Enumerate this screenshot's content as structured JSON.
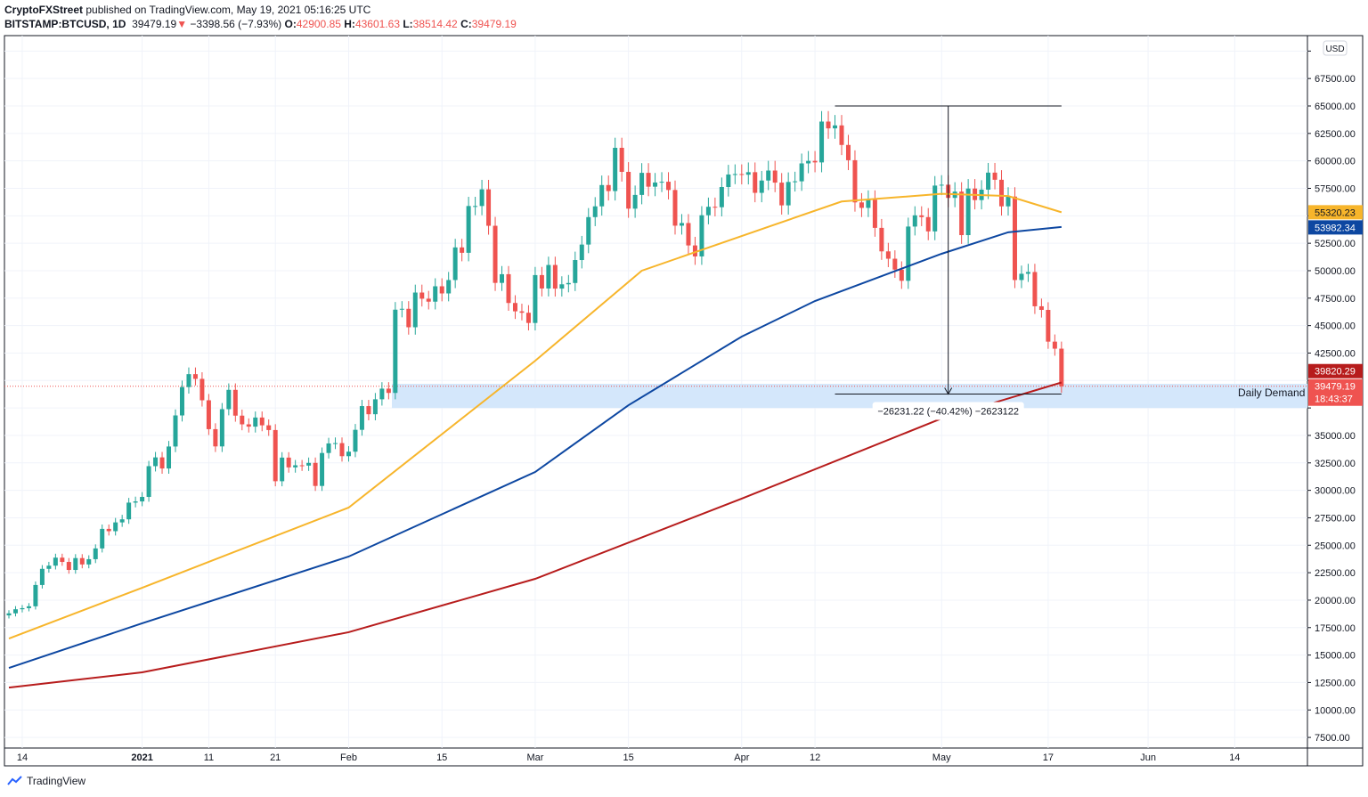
{
  "header": {
    "publisher": "CryptoFXStreet",
    "published_text": "published on TradingView.com, May 19, 2021 05:16:25 UTC",
    "symbol": "BITSTAMP:BTCUSD, 1D",
    "last": "39479.19",
    "change": "−3398.56 (−7.93%)",
    "o_label": "O:",
    "open": "42900.85",
    "h_label": "H:",
    "high": "43601.63",
    "l_label": "L:",
    "low": "38514.42",
    "c_label": "C:",
    "close": "39479.19"
  },
  "footer": {
    "brand": "TradingView"
  },
  "colors": {
    "up": "#26a69a",
    "down": "#ef5350",
    "ma50": "#f7b52b",
    "ma100": "#0d47a1",
    "ma200": "#b71c1c",
    "zone": "#d4e7fb"
  },
  "chart_data": {
    "type": "candlestick",
    "title": "BITSTAMP:BTCUSD, 1D",
    "start_date": "2020-12-12",
    "currency_label": "USD",
    "ylim": [
      6250,
      70500
    ],
    "y_tick_step": 2500,
    "closes": [
      18800,
      19170,
      19270,
      19440,
      21380,
      22850,
      23140,
      23870,
      23480,
      22750,
      23830,
      23250,
      23730,
      24710,
      26490,
      26280,
      27080,
      27360,
      28880,
      28990,
      29400,
      32200,
      33000,
      31990,
      33990,
      36820,
      39400,
      40580,
      40150,
      38200,
      35570,
      34000,
      37390,
      39150,
      36800,
      36010,
      35800,
      36630,
      35920,
      35490,
      30830,
      32980,
      32090,
      32280,
      32250,
      32500,
      30400,
      33400,
      34270,
      34300,
      33110,
      33520,
      35510,
      37670,
      36930,
      38290,
      39260,
      38870,
      46450,
      46530,
      44850,
      48010,
      47450,
      47180,
      48580,
      47930,
      49150,
      52120,
      51630,
      55890,
      55890,
      57410,
      54090,
      48890,
      49680,
      47060,
      46300,
      46170,
      45240,
      49600,
      48380,
      50520,
      48370,
      48760,
      48880,
      50970,
      52380,
      54880,
      55860,
      57800,
      57250,
      61190,
      59000,
      55650,
      56900,
      58910,
      57650,
      58030,
      58100,
      57350,
      54100,
      54340,
      52300,
      51300,
      55050,
      55820,
      55780,
      57620,
      58760,
      58800,
      58740,
      58970,
      57090,
      58210,
      59120,
      58020,
      55950,
      58080,
      58140,
      59770,
      60000,
      59860,
      63580,
      62960,
      63230,
      61450,
      60060,
      56220,
      55720,
      56470,
      53900,
      51760,
      51090,
      50100,
      49080,
      54020,
      55040,
      54880,
      53580,
      57750,
      57830,
      56630,
      57200,
      53240,
      57480,
      56430,
      57380,
      58930,
      58280,
      55860,
      56750,
      49150,
      49720,
      49880,
      46760,
      46430,
      43540,
      42900,
      39479.19
    ],
    "x_ticks": [
      {
        "i": 2,
        "label": "14"
      },
      {
        "i": 20,
        "label": "2021",
        "bold": true
      },
      {
        "i": 30,
        "label": "11"
      },
      {
        "i": 40,
        "label": "21"
      },
      {
        "i": 51,
        "label": "Feb"
      },
      {
        "i": 65,
        "label": "15"
      },
      {
        "i": 79,
        "label": "Mar"
      },
      {
        "i": 93,
        "label": "15"
      },
      {
        "i": 110,
        "label": "Apr"
      },
      {
        "i": 121,
        "label": "12"
      },
      {
        "i": 140,
        "label": "May"
      },
      {
        "i": 156,
        "label": "17"
      },
      {
        "i": 171,
        "label": "Jun"
      },
      {
        "i": 184,
        "label": "14"
      }
    ],
    "moving_averages": [
      {
        "name": "MA 50",
        "value_label": "55320.23",
        "points": [
          [
            0,
            16500
          ],
          [
            20,
            21130
          ],
          [
            51,
            28430
          ],
          [
            79,
            41800
          ],
          [
            95,
            50000
          ],
          [
            110,
            53160
          ],
          [
            125,
            56300
          ],
          [
            140,
            57000
          ],
          [
            150,
            56800
          ],
          [
            158,
            55320.23
          ]
        ]
      },
      {
        "name": "MA 100",
        "value_label": "53982.34",
        "points": [
          [
            0,
            13830
          ],
          [
            20,
            17890
          ],
          [
            51,
            23970
          ],
          [
            79,
            31670
          ],
          [
            93,
            37750
          ],
          [
            110,
            44000
          ],
          [
            121,
            47240
          ],
          [
            140,
            51540
          ],
          [
            150,
            53500
          ],
          [
            158,
            53982.34
          ]
        ]
      },
      {
        "name": "MA 200",
        "value_label": "39820.29",
        "points": [
          [
            0,
            12040
          ],
          [
            20,
            13430
          ],
          [
            51,
            17080
          ],
          [
            79,
            21940
          ],
          [
            110,
            29240
          ],
          [
            140,
            36540
          ],
          [
            158,
            39820.29
          ]
        ]
      }
    ],
    "zone": {
      "label": "Daily Demand",
      "from": 37500,
      "to": 39700
    },
    "measure": {
      "start_index": 124,
      "end_index": 158,
      "top": 65000,
      "bottom": 38769,
      "label": "−26231.22 (−40.42%) −2623122"
    },
    "last_price": {
      "value": "39479.19",
      "countdown": "18:43:37"
    }
  }
}
